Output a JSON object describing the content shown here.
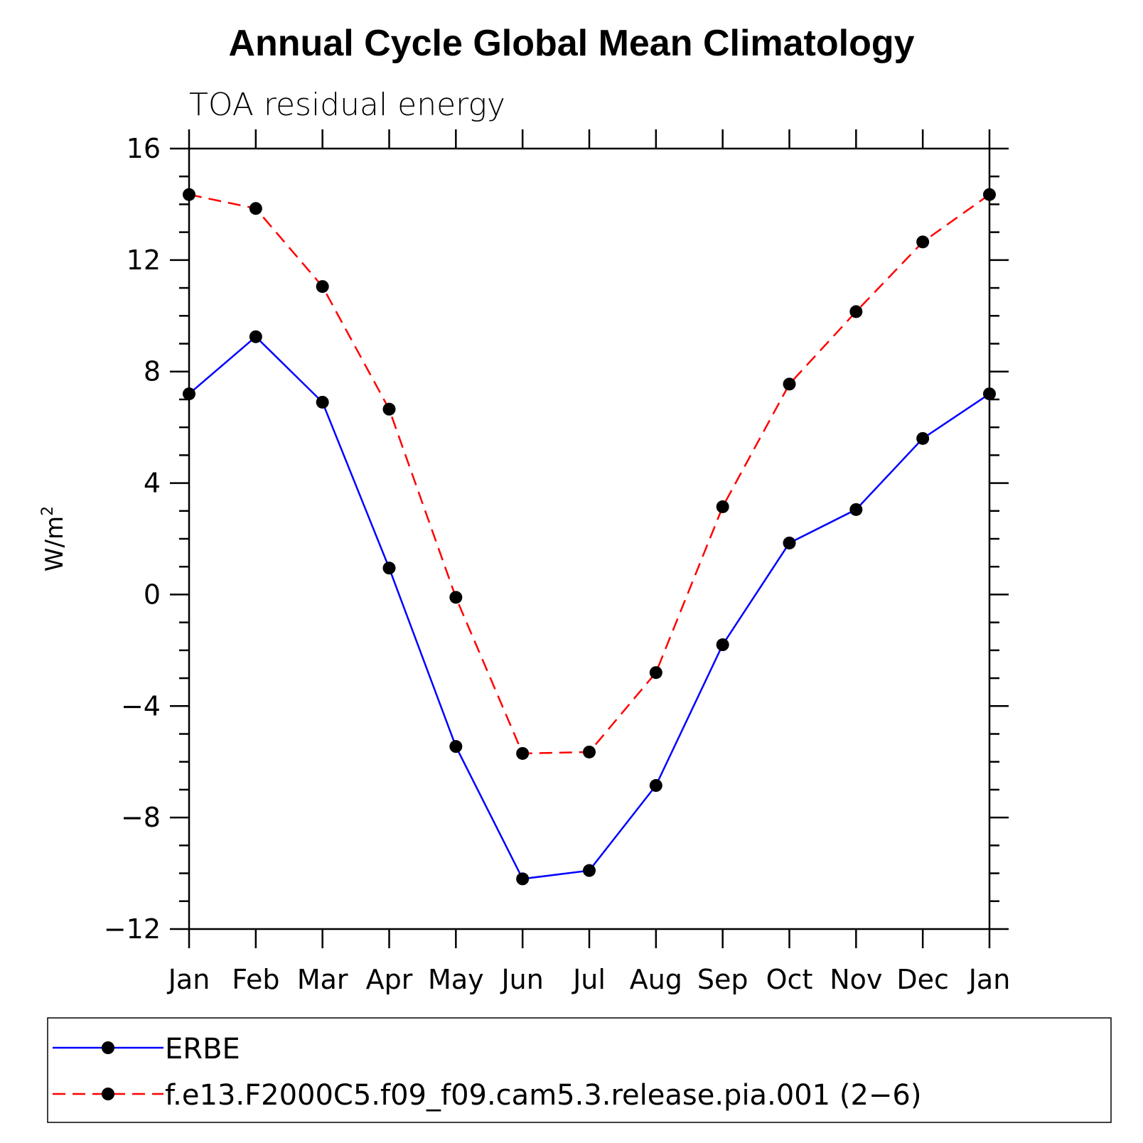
{
  "chart_data": {
    "type": "line",
    "title": "Annual Cycle Global Mean Climatology",
    "subtitle": "TOA residual energy",
    "ylabel": "W/m",
    "ylabel_superscript": "2",
    "xlabel": "",
    "ylim": [
      -12,
      16
    ],
    "yticks": [
      16,
      12,
      8,
      4,
      0,
      -4,
      -8,
      -12
    ],
    "ytick_labels": [
      "16",
      "12",
      "8",
      "4",
      "0",
      "−4",
      "−8",
      "−12"
    ],
    "categories": [
      "Jan",
      "Feb",
      "Mar",
      "Apr",
      "May",
      "Jun",
      "Jul",
      "Aug",
      "Sep",
      "Oct",
      "Nov",
      "Dec",
      "Jan"
    ],
    "series": [
      {
        "name": "ERBE",
        "color": "#0000ff",
        "dash": "solid",
        "marker": "filled-circle",
        "values": [
          7.2,
          9.25,
          6.9,
          0.95,
          -5.45,
          -10.2,
          -9.9,
          -6.85,
          -1.8,
          1.85,
          3.05,
          5.6,
          7.2
        ]
      },
      {
        "name": "f.e13.F2000C5.f09_f09.cam5.3.release.pia.001 (2−6)",
        "color": "#ff0000",
        "dash": "dashed",
        "marker": "filled-circle",
        "values": [
          14.35,
          13.85,
          11.05,
          6.65,
          -0.1,
          -5.7,
          -5.65,
          -2.8,
          3.15,
          7.55,
          10.15,
          12.65,
          14.35
        ]
      }
    ],
    "legend": "bottom",
    "grid": false
  }
}
